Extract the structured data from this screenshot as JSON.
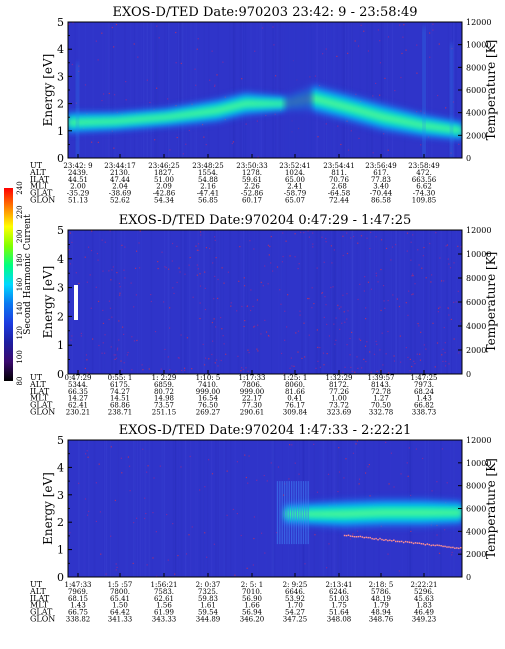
{
  "chart_data": [
    {
      "type": "heatmap",
      "title": "EXOS-D/TED   Date:970203  23:42: 9 - 23:58:49",
      "ylabel": "Energy [eV]",
      "ylabel_right": "Temperature [K]",
      "ylim": [
        0,
        5
      ],
      "ylim_right": [
        0,
        12000
      ],
      "yticks": [
        "0",
        "1",
        "2",
        "3",
        "4",
        "5"
      ],
      "yticks_right": [
        "0",
        "2000",
        "4000",
        "6000",
        "8000",
        "10000",
        "12000"
      ],
      "x_start": "23:42:9",
      "x_end": "23:58:49",
      "band": {
        "description": "harmonic band",
        "segments": [
          {
            "t": 0.0,
            "center": 1.3,
            "width": 0.55,
            "intensity": 0.55
          },
          {
            "t": 0.12,
            "center": 1.35,
            "width": 0.5,
            "intensity": 0.75
          },
          {
            "t": 0.25,
            "center": 1.5,
            "width": 0.5,
            "intensity": 0.85
          },
          {
            "t": 0.38,
            "center": 1.75,
            "width": 0.6,
            "intensity": 0.65
          },
          {
            "t": 0.45,
            "center": 2.0,
            "width": 0.6,
            "intensity": 0.25
          },
          {
            "t": 0.55,
            "center": 2.0,
            "width": 0.4,
            "intensity": 0.08
          },
          {
            "t": 0.62,
            "center": 2.2,
            "width": 0.7,
            "intensity": 0.55
          },
          {
            "t": 0.7,
            "center": 1.9,
            "width": 0.7,
            "intensity": 0.85
          },
          {
            "t": 0.8,
            "center": 1.5,
            "width": 0.7,
            "intensity": 0.9
          },
          {
            "t": 0.9,
            "center": 1.2,
            "width": 0.6,
            "intensity": 0.8
          },
          {
            "t": 1.0,
            "center": 1.0,
            "width": 0.5,
            "intensity": 0.7
          }
        ]
      },
      "table": {
        "labels": [
          "UT",
          "ALT",
          "ILAT",
          "MLT",
          "GLAT",
          "GLON"
        ],
        "columns": [
          [
            "23:42: 9",
            "2439.",
            "44.51",
            "2.00",
            "-35.29",
            "51.13"
          ],
          [
            "23:44:17",
            "2130.",
            "47.44",
            "2.04",
            "-38.69",
            "52.62"
          ],
          [
            "23:46:25",
            "1827.",
            "51.00",
            "2.09",
            "-42.86",
            "54.34"
          ],
          [
            "23:48:25",
            "1554.",
            "54.88",
            "2.16",
            "-47.41",
            "56.85"
          ],
          [
            "23:50:33",
            "1278.",
            "59.61",
            "2.26",
            "-52.86",
            "60.17"
          ],
          [
            "23:52:41",
            "1024.",
            "65.00",
            "2.41",
            "-58.79",
            "65.07"
          ],
          [
            "23:54:41",
            "811.",
            "70.76",
            "2.68",
            "-64.58",
            "72.44"
          ],
          [
            "23:56:49",
            "617.",
            "77.83",
            "3.40",
            "-70.44",
            "86.58"
          ],
          [
            "23:58:49",
            "472.",
            "663.56",
            "6.62",
            "-74.30",
            "109.85"
          ]
        ]
      }
    },
    {
      "type": "heatmap",
      "title": "EXOS-D/TED   Date:970204   0:47:29 - 1:47:25",
      "ylabel": "Energy [eV]",
      "ylabel_right": "Temperature [K]",
      "ylim": [
        0,
        5
      ],
      "ylim_right": [
        0,
        12000
      ],
      "yticks": [
        "0",
        "1",
        "2",
        "3",
        "4",
        "5"
      ],
      "yticks_right": [
        "0",
        "2000",
        "4000",
        "6000",
        "8000",
        "10000",
        "12000"
      ],
      "x_start": "0:47:29",
      "x_end": "1:47:25",
      "table": {
        "labels": [
          "UT",
          "ALT",
          "ILAT",
          "MLT",
          "GLAT",
          "GLON"
        ],
        "columns": [
          [
            "0:47:29",
            "5344.",
            "66.35",
            "14.27",
            "62.41",
            "230.21"
          ],
          [
            "0:55: 1",
            "6175.",
            "74.27",
            "14.51",
            "68.86",
            "238.71"
          ],
          [
            "1: 2:29",
            "6859.",
            "80.72",
            "14.98",
            "73.57",
            "251.15"
          ],
          [
            "1:10: 5",
            "7410.",
            "999.00",
            "16.54",
            "76.50",
            "269.27"
          ],
          [
            "1:17:33",
            "7806.",
            "999.00",
            "22.17",
            "77.30",
            "290.61"
          ],
          [
            "1:25: 1",
            "8060.",
            "81.66",
            "0.41",
            "76.17",
            "309.84"
          ],
          [
            "1:32:29",
            "8172.",
            "77.26",
            "1.00",
            "73.72",
            "323.69"
          ],
          [
            "1:39:57",
            "8143.",
            "72.78",
            "1.27",
            "70.50",
            "332.78"
          ],
          [
            "1:47:25",
            "7973.",
            "68.24",
            "1.43",
            "66.82",
            "338.73"
          ]
        ]
      }
    },
    {
      "type": "heatmap",
      "title": "EXOS-D/TED   Date:970204   1:47:33 - 2:22:21",
      "ylabel": "Energy [eV]",
      "ylabel_right": "Temperature [K]",
      "ylim": [
        0,
        5
      ],
      "ylim_right": [
        0,
        12000
      ],
      "yticks": [
        "0",
        "1",
        "2",
        "3",
        "4",
        "5"
      ],
      "yticks_right": [
        "0",
        "2000",
        "4000",
        "6000",
        "8000",
        "10000",
        "12000"
      ],
      "x_start": "1:47:33",
      "x_end": "2:22:21",
      "band": {
        "description": "harmonic band",
        "segments": [
          {
            "t": 0.55,
            "center": 2.3,
            "width": 0.5,
            "intensity": 0.3
          },
          {
            "t": 0.62,
            "center": 2.3,
            "width": 0.6,
            "intensity": 0.55
          },
          {
            "t": 0.7,
            "center": 2.3,
            "width": 0.7,
            "intensity": 0.7
          },
          {
            "t": 0.8,
            "center": 2.35,
            "width": 0.7,
            "intensity": 0.75
          },
          {
            "t": 0.9,
            "center": 2.35,
            "width": 0.7,
            "intensity": 0.8
          },
          {
            "t": 1.0,
            "center": 2.35,
            "width": 0.6,
            "intensity": 0.8
          }
        ]
      },
      "table": {
        "labels": [
          "UT",
          "ALT",
          "ILAT",
          "MLT",
          "GLAT",
          "GLON"
        ],
        "columns": [
          [
            "1:47:33",
            "7969.",
            "68.15",
            "1.43",
            "66.75",
            "338.82"
          ],
          [
            "1:5 :57",
            "7800.",
            "65.41",
            "1.50",
            "64.42",
            "341.33"
          ],
          [
            "1:56:21",
            "7583.",
            "62.61",
            "1.56",
            "61.99",
            "343.33"
          ],
          [
            "2: 0:37",
            "7325.",
            "59.83",
            "1.61",
            "59.54",
            "344.89"
          ],
          [
            "2: 5: 1",
            "7010.",
            "56.90",
            "1.66",
            "56.94",
            "346.20"
          ],
          [
            "2: 9:25",
            "6646.",
            "53.92",
            "1.70",
            "54.27",
            "347.25"
          ],
          [
            "2:13:41",
            "6246.",
            "51.03",
            "1.75",
            "51.64",
            "348.08"
          ],
          [
            "2:18: 5",
            "5786.",
            "48.19",
            "1.79",
            "48.94",
            "348.76"
          ],
          [
            "2:22:21",
            "5296.",
            "45.63",
            "1.83",
            "46.49",
            "349.23"
          ]
        ]
      }
    }
  ],
  "colorbar": {
    "label": "Second Harmonic Current",
    "ticks": [
      "80",
      "100",
      "120",
      "140",
      "160",
      "180",
      "200",
      "220",
      "240"
    ],
    "range": [
      80,
      240
    ],
    "colors": [
      "#000000",
      "#3a0a6e",
      "#1e1ea0",
      "#1c3ce0",
      "#0a78f0",
      "#00d8ff",
      "#00ff80",
      "#80ff00",
      "#ffff00",
      "#ff8000",
      "#ff0000"
    ]
  },
  "colors": {
    "background": "#2f34c9",
    "band_mid": "#00c8ff",
    "band_core": "#00ffb0",
    "band_hot": "#ffff40"
  }
}
